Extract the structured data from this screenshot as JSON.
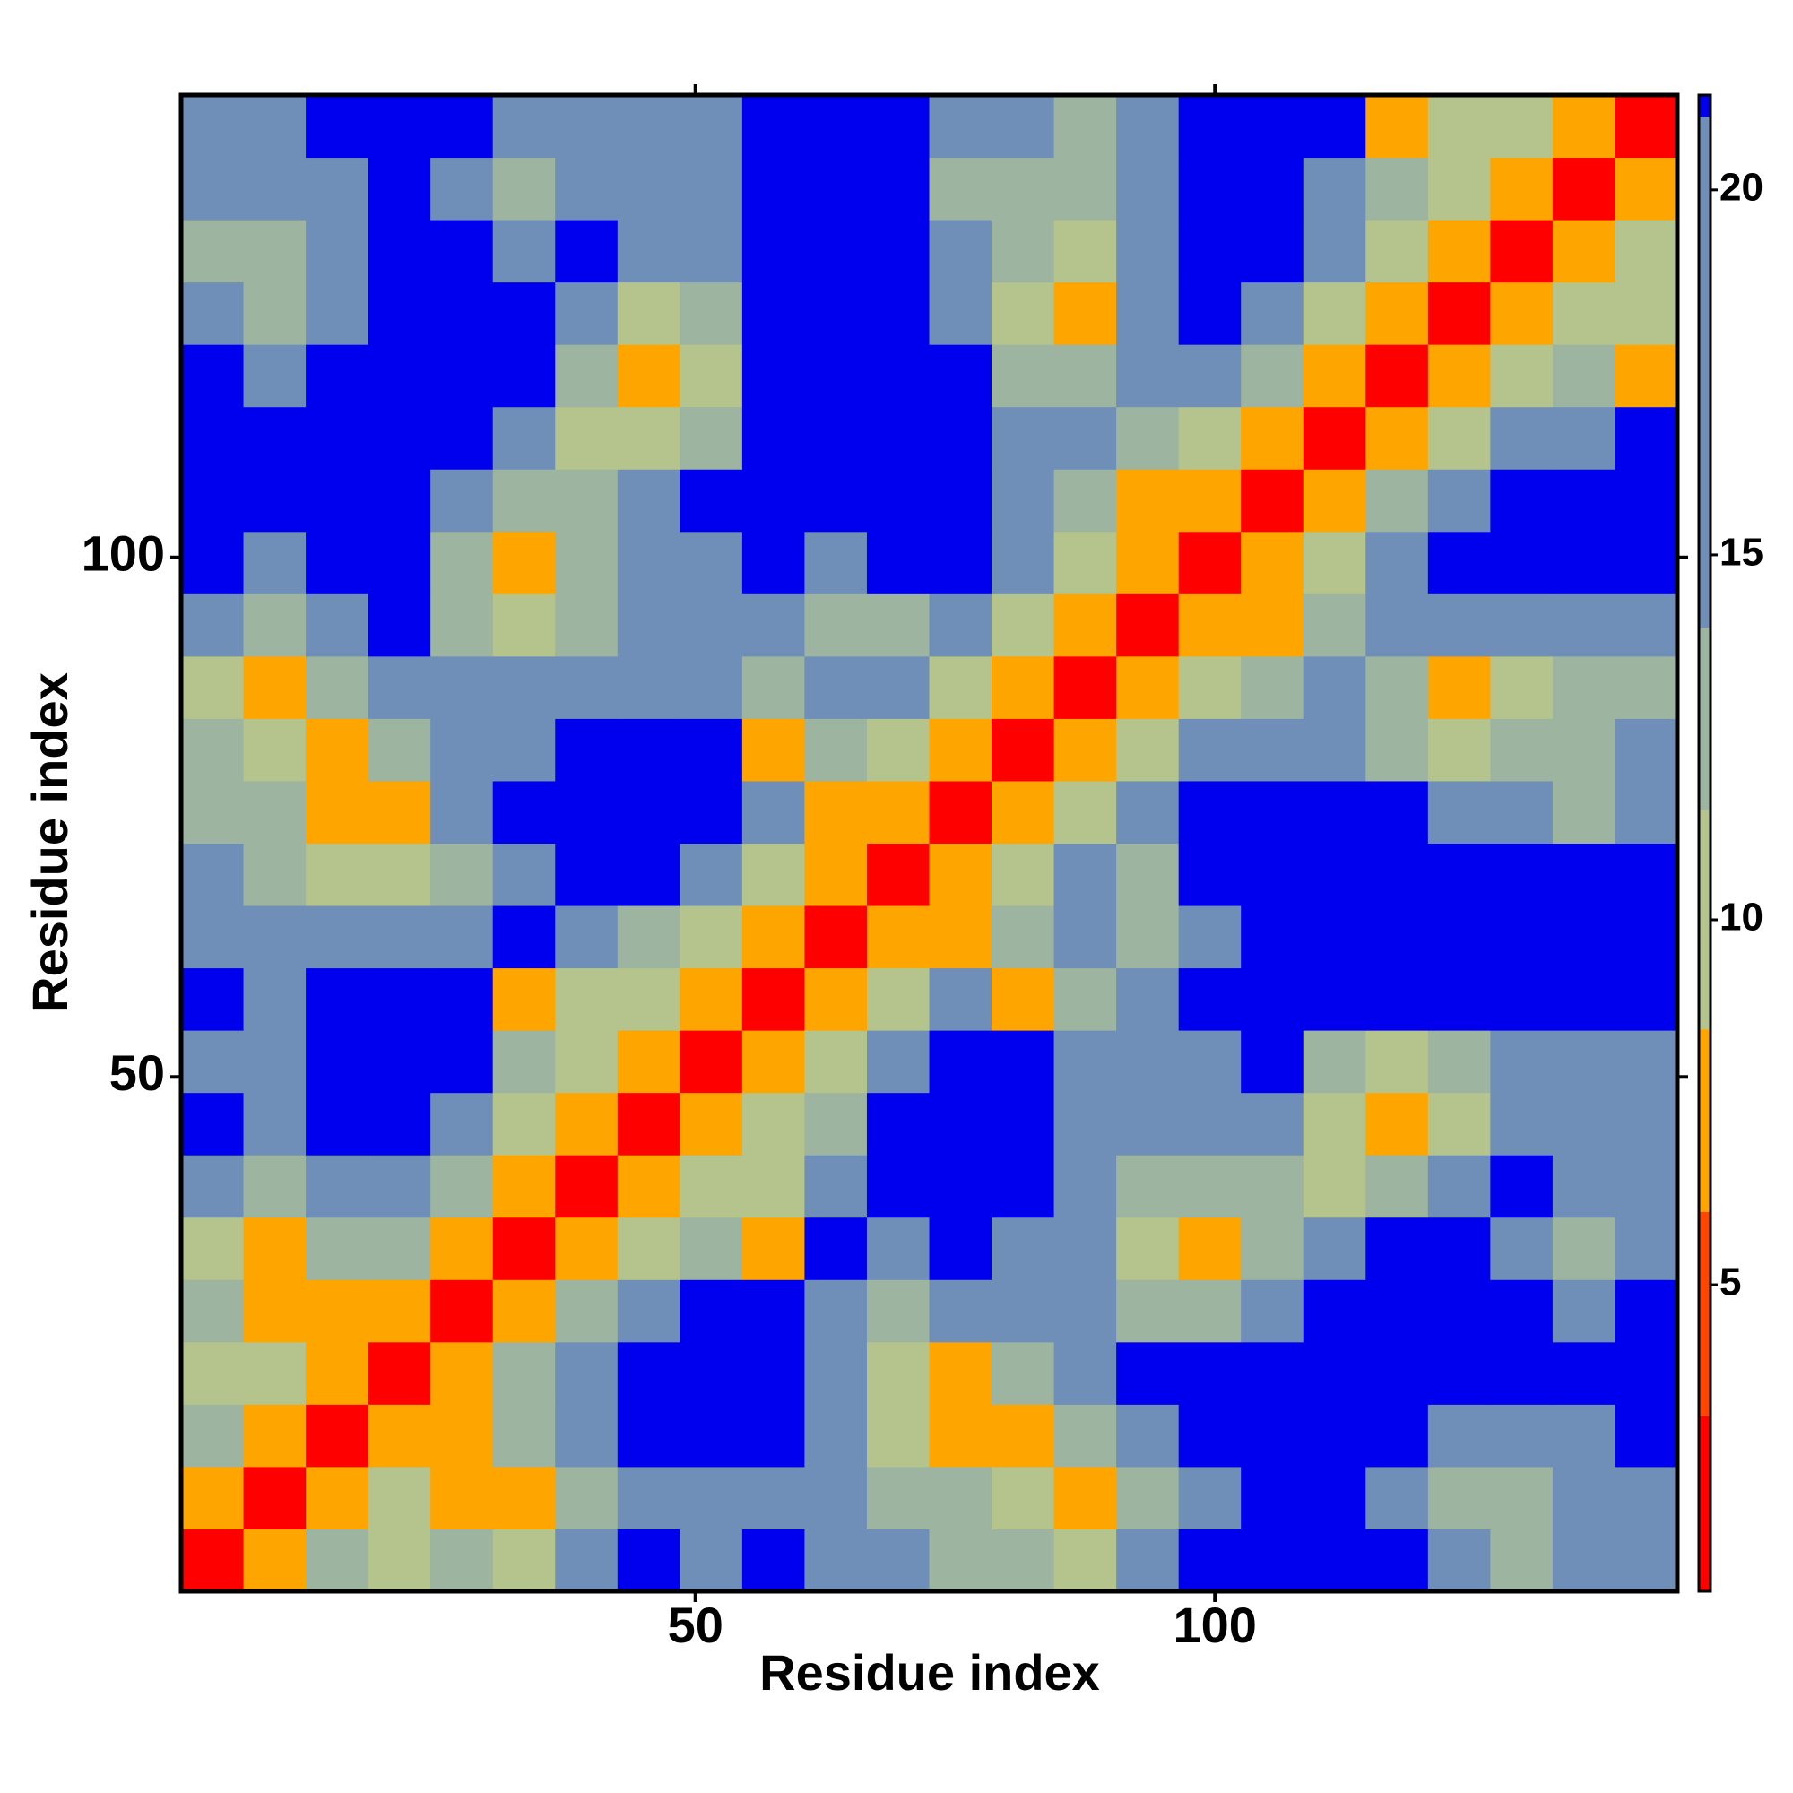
{
  "chart_data": {
    "type": "heatmap",
    "xlabel": "Residue index",
    "ylabel": "Residue index",
    "xlim": [
      0.5,
      144.5
    ],
    "ylim": [
      0.5,
      144.5
    ],
    "xticks": [
      50,
      100
    ],
    "yticks": [
      50,
      100
    ],
    "x_bins": [
      0.5,
      6.5,
      12.5,
      18.5,
      24.5,
      30.5,
      36.5,
      42.5,
      48.5,
      54.5,
      60.5,
      66.5,
      72.5,
      78.5,
      84.5,
      90.5,
      96.5,
      102.5,
      108.5,
      114.5,
      120.5,
      126.5,
      132.5,
      138.5,
      144.5
    ],
    "y_bins": [
      0.5,
      6.5,
      12.5,
      18.5,
      24.5,
      30.5,
      36.5,
      42.5,
      48.5,
      54.5,
      60.5,
      66.5,
      72.5,
      78.5,
      84.5,
      90.5,
      96.5,
      102.5,
      108.5,
      114.5,
      120.5,
      126.5,
      132.5,
      138.5,
      144.5
    ],
    "z": [
      [
        3,
        8,
        12,
        10,
        12,
        10,
        16,
        21,
        16,
        21,
        16,
        14,
        12,
        12,
        10,
        14,
        21,
        21,
        21,
        21,
        14,
        12,
        14,
        16
      ],
      [
        8,
        3,
        8,
        10,
        7,
        7,
        12,
        16,
        14,
        18,
        14,
        12,
        12,
        10,
        7,
        12,
        16,
        21,
        21,
        14,
        12,
        12,
        14,
        14
      ],
      [
        12,
        8,
        3,
        7,
        7,
        12,
        14,
        21,
        21,
        21,
        14,
        10,
        7,
        7,
        12,
        16,
        21,
        21,
        21,
        21,
        14,
        14,
        16,
        21
      ],
      [
        10,
        10,
        7,
        3,
        8,
        12,
        16,
        21,
        21,
        21,
        14,
        10,
        7,
        12,
        16,
        21,
        21,
        21,
        21,
        21,
        21,
        21,
        21,
        21
      ],
      [
        12,
        7,
        7,
        8,
        3,
        8,
        12,
        14,
        21,
        21,
        16,
        12,
        14,
        14,
        14,
        12,
        12,
        14,
        21,
        21,
        21,
        21,
        16,
        21
      ],
      [
        10,
        7,
        12,
        12,
        8,
        3,
        8,
        10,
        12,
        7,
        21,
        16,
        21,
        16,
        14,
        10,
        7,
        12,
        16,
        21,
        21,
        14,
        12,
        14
      ],
      [
        16,
        12,
        14,
        16,
        12,
        8,
        3,
        8,
        10,
        10,
        14,
        21,
        21,
        21,
        16,
        12,
        12,
        12,
        10,
        12,
        14,
        21,
        16,
        14
      ],
      [
        21,
        16,
        21,
        21,
        14,
        10,
        8,
        3,
        6,
        10,
        12,
        21,
        21,
        21,
        16,
        14,
        14,
        16,
        10,
        7,
        10,
        14,
        14,
        14
      ],
      [
        16,
        14,
        21,
        21,
        21,
        12,
        10,
        6,
        3,
        6,
        10,
        14,
        21,
        21,
        16,
        14,
        16,
        21,
        12,
        10,
        12,
        14,
        16,
        14
      ],
      [
        21,
        18,
        21,
        21,
        21,
        7,
        10,
        10,
        6,
        3,
        6,
        10,
        14,
        7,
        12,
        16,
        21,
        21,
        21,
        21,
        21,
        21,
        21,
        21
      ],
      [
        16,
        14,
        14,
        14,
        16,
        21,
        14,
        12,
        10,
        6,
        3,
        6,
        7,
        12,
        16,
        12,
        14,
        21,
        21,
        21,
        21,
        21,
        21,
        21
      ],
      [
        14,
        12,
        10,
        10,
        12,
        16,
        21,
        21,
        14,
        10,
        6,
        3,
        6,
        10,
        14,
        12,
        21,
        21,
        21,
        21,
        21,
        21,
        21,
        21
      ],
      [
        12,
        12,
        7,
        7,
        14,
        21,
        21,
        21,
        21,
        14,
        7,
        6,
        3,
        6,
        10,
        14,
        21,
        21,
        21,
        21,
        14,
        14,
        12,
        14
      ],
      [
        12,
        10,
        7,
        12,
        14,
        16,
        21,
        21,
        21,
        7,
        12,
        10,
        6,
        3,
        6,
        10,
        14,
        14,
        16,
        12,
        10,
        12,
        12,
        14
      ],
      [
        10,
        7,
        12,
        16,
        14,
        14,
        16,
        16,
        16,
        12,
        16,
        14,
        10,
        6,
        3,
        6,
        10,
        12,
        14,
        12,
        7,
        10,
        12,
        12
      ],
      [
        14,
        12,
        16,
        21,
        12,
        10,
        12,
        14,
        14,
        16,
        12,
        12,
        14,
        10,
        6,
        3,
        6,
        8,
        12,
        16,
        14,
        14,
        14,
        14
      ],
      [
        21,
        16,
        21,
        21,
        12,
        7,
        12,
        14,
        16,
        21,
        14,
        21,
        21,
        14,
        10,
        6,
        3,
        6,
        10,
        16,
        21,
        21,
        21,
        21
      ],
      [
        21,
        21,
        21,
        21,
        14,
        12,
        12,
        16,
        21,
        21,
        21,
        21,
        21,
        14,
        12,
        8,
        6,
        3,
        6,
        12,
        16,
        21,
        21,
        21
      ],
      [
        21,
        21,
        21,
        21,
        21,
        16,
        10,
        10,
        12,
        21,
        21,
        21,
        21,
        16,
        14,
        12,
        10,
        6,
        3,
        6,
        10,
        14,
        16,
        21
      ],
      [
        21,
        14,
        21,
        21,
        21,
        21,
        12,
        7,
        10,
        21,
        21,
        21,
        21,
        12,
        12,
        16,
        16,
        12,
        6,
        3,
        6,
        10,
        12,
        7
      ],
      [
        14,
        12,
        14,
        21,
        21,
        21,
        14,
        10,
        12,
        21,
        21,
        21,
        14,
        10,
        7,
        14,
        21,
        16,
        10,
        6,
        3,
        6,
        10,
        10
      ],
      [
        12,
        12,
        14,
        21,
        21,
        14,
        21,
        14,
        14,
        21,
        21,
        21,
        14,
        12,
        10,
        14,
        21,
        21,
        14,
        10,
        6,
        3,
        6,
        10
      ],
      [
        14,
        14,
        16,
        21,
        16,
        12,
        16,
        14,
        16,
        21,
        21,
        21,
        12,
        12,
        12,
        14,
        21,
        21,
        16,
        12,
        10,
        6,
        3,
        6
      ],
      [
        16,
        14,
        21,
        21,
        21,
        14,
        14,
        14,
        14,
        21,
        21,
        21,
        14,
        14,
        12,
        14,
        21,
        21,
        21,
        7,
        10,
        10,
        6,
        3
      ]
    ],
    "colorbar": {
      "lim": [
        0.8,
        21.3
      ],
      "ticks": [
        5,
        10,
        15,
        20
      ],
      "bands": [
        {
          "from": 0.8,
          "to": 3.2,
          "color": "#ff0000"
        },
        {
          "from": 3.2,
          "to": 6,
          "color": "#ff4500"
        },
        {
          "from": 6,
          "to": 8.5,
          "color": "#ffa500"
        },
        {
          "from": 8.5,
          "to": 11.5,
          "color": "#b4c48c"
        },
        {
          "from": 11.5,
          "to": 14,
          "color": "#9cb4a0"
        },
        {
          "from": 14,
          "to": 21,
          "color": "#6f8fb8"
        },
        {
          "from": 21,
          "to": 21.3,
          "color": "#0000ee"
        }
      ]
    }
  }
}
